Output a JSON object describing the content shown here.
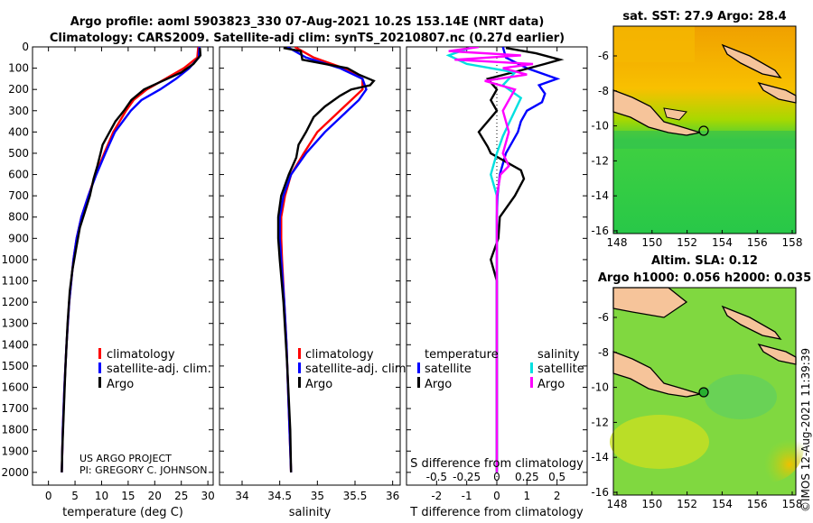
{
  "header": {
    "title_line1": "Argo profile: aoml 5903823_330 07-Aug-2021 10.2S 153.14E (NRT data)",
    "title_line2": "Climatology: CARS2009. Satellite-adj clim: synTS_20210807.nc (0.27d earlier)"
  },
  "credit": {
    "project": "US ARGO PROJECT",
    "pi": "PI: GREGORY C. JOHNSON",
    "timestamp": "©IMOS 12-Aug-2021 11:39:39"
  },
  "colors": {
    "climatology": "#ff0000",
    "satellite": "#0000ff",
    "argo": "#000000",
    "sat_salinity": "#00e0e0",
    "argo_salinity": "#ff00ff"
  },
  "chart_data": [
    {
      "id": "temperature",
      "type": "line",
      "xlabel": "temperature (deg C)",
      "ylabel": "",
      "xlim": [
        -3,
        31
      ],
      "ylim": [
        2060,
        0
      ],
      "xticks": [
        0,
        5,
        10,
        15,
        20,
        25,
        30
      ],
      "xtick_labels": [
        "0",
        "5",
        "10",
        "15",
        "20",
        "25",
        "30"
      ],
      "yticks": [
        0,
        100,
        200,
        300,
        400,
        500,
        600,
        700,
        800,
        900,
        1000,
        1100,
        1200,
        1300,
        1400,
        1500,
        1600,
        1700,
        1800,
        1900,
        2000
      ],
      "legend": [
        "climatology",
        "satellite-adj. clim.",
        "Argo"
      ],
      "series": [
        {
          "name": "climatology",
          "color": "#ff0000",
          "depth": [
            0,
            50,
            100,
            150,
            200,
            250,
            300,
            400,
            500,
            600,
            700,
            800,
            900,
            1000,
            1200,
            1400,
            1600,
            1800,
            2000
          ],
          "values": [
            28.2,
            28,
            25.5,
            22,
            18.5,
            16,
            14.6,
            12.2,
            10.5,
            8.9,
            7.5,
            6.2,
            5.3,
            4.7,
            3.9,
            3.4,
            3.0,
            2.7,
            2.5
          ]
        },
        {
          "name": "satellite-adj. clim.",
          "color": "#0000ff",
          "depth": [
            0,
            50,
            100,
            150,
            200,
            250,
            300,
            400,
            500,
            600,
            700,
            800,
            900,
            1000,
            1200,
            1400,
            1600,
            1800,
            2000
          ],
          "values": [
            28.4,
            28.3,
            26.5,
            24,
            21,
            17.5,
            15.5,
            12.5,
            10.7,
            9,
            7.5,
            6.2,
            5.3,
            4.7,
            3.9,
            3.4,
            3.0,
            2.7,
            2.5
          ]
        },
        {
          "name": "Argo",
          "color": "#000000",
          "depth": [
            5,
            40,
            80,
            120,
            160,
            200,
            250,
            300,
            350,
            400,
            460,
            500,
            560,
            620,
            700,
            780,
            850,
            950,
            1050,
            1150,
            1300,
            1500,
            1700,
            1900,
            2000
          ],
          "values": [
            28.5,
            28.6,
            27.3,
            25,
            21.5,
            18,
            15.6,
            14.2,
            12.6,
            11.5,
            10.2,
            9.8,
            9.2,
            8.5,
            7.8,
            6.8,
            5.9,
            5.2,
            4.5,
            4.0,
            3.6,
            3.2,
            2.9,
            2.6,
            2.5
          ]
        }
      ]
    },
    {
      "id": "salinity",
      "type": "line",
      "xlabel": "salinity",
      "ylabel": "",
      "xlim": [
        33.7,
        36.1
      ],
      "ylim": [
        2060,
        0
      ],
      "xticks": [
        34,
        34.5,
        35,
        35.5,
        36
      ],
      "xtick_labels": [
        "34",
        "34.5",
        "35",
        "35.5",
        "36"
      ],
      "legend": [
        "climatology",
        "satellite-adj. clim.",
        "Argo"
      ],
      "series": [
        {
          "name": "climatology",
          "color": "#ff0000",
          "depth": [
            0,
            50,
            100,
            150,
            200,
            250,
            300,
            400,
            500,
            600,
            700,
            800,
            900,
            1000,
            1200,
            1400,
            1600,
            1800,
            2000
          ],
          "values": [
            34.7,
            34.95,
            35.35,
            35.6,
            35.6,
            35.45,
            35.3,
            35.0,
            34.82,
            34.65,
            34.57,
            34.52,
            34.52,
            34.53,
            34.56,
            34.59,
            34.61,
            34.63,
            34.65
          ]
        },
        {
          "name": "satellite-adj. clim.",
          "color": "#0000ff",
          "depth": [
            0,
            50,
            100,
            150,
            200,
            250,
            300,
            400,
            500,
            600,
            700,
            800,
            900,
            1000,
            1200,
            1400,
            1600,
            1800,
            2000
          ],
          "values": [
            34.6,
            34.85,
            35.3,
            35.6,
            35.65,
            35.55,
            35.4,
            35.1,
            34.85,
            34.65,
            34.55,
            34.5,
            34.5,
            34.52,
            34.56,
            34.59,
            34.61,
            34.63,
            34.65
          ]
        },
        {
          "name": "Argo",
          "color": "#000000",
          "depth": [
            5,
            20,
            60,
            100,
            130,
            160,
            180,
            200,
            230,
            280,
            330,
            400,
            460,
            520,
            600,
            700,
            800,
            900,
            1000,
            1200,
            1500,
            1800,
            2000
          ],
          "values": [
            34.55,
            34.78,
            34.8,
            35.4,
            35.55,
            35.75,
            35.7,
            35.45,
            35.3,
            35.1,
            34.95,
            34.85,
            34.75,
            34.72,
            34.62,
            34.52,
            34.48,
            34.48,
            34.5,
            34.55,
            34.6,
            34.64,
            34.65
          ]
        }
      ]
    },
    {
      "id": "differences",
      "type": "line",
      "xlabel": "T difference from climatology",
      "xlabel_top": "S difference from climatology",
      "xlim": [
        -3,
        3
      ],
      "ylim": [
        2060,
        0
      ],
      "xticks": [
        -2,
        -1,
        0,
        1,
        2
      ],
      "xtick_labels": [
        "-2",
        "-1",
        "0",
        "1",
        "2"
      ],
      "sticks": [
        -0.5,
        -0.25,
        0,
        0.25,
        0.5
      ],
      "stick_labels": [
        "-0.5",
        "-0.25",
        "0",
        "0.25",
        "0.5"
      ],
      "legend_temperature_title": "temperature",
      "legend_salinity_title": "salinity",
      "legend_temperature": [
        "satellite",
        "Argo"
      ],
      "legend_salinity": [
        "satellite",
        "Argo"
      ],
      "series": [
        {
          "name": "T satellite",
          "color": "#0000ff",
          "depth": [
            0,
            50,
            100,
            150,
            180,
            220,
            260,
            300,
            350,
            400,
            450,
            500,
            600,
            700,
            800,
            900,
            1000,
            2000
          ],
          "values": [
            0.2,
            0.3,
            1,
            2,
            1.4,
            1.6,
            1.5,
            1.0,
            0.8,
            0.7,
            0.5,
            0.3,
            0.1,
            0.02,
            0,
            0,
            0,
            0
          ]
        },
        {
          "name": "T Argo",
          "color": "#000000",
          "depth": [
            5,
            30,
            60,
            80,
            110,
            150,
            200,
            250,
            300,
            400,
            470,
            500,
            580,
            620,
            700,
            800,
            900,
            1000,
            1100,
            1200,
            1500,
            2000
          ],
          "values": [
            0.3,
            1.3,
            2.1,
            1.6,
            0.8,
            -0.3,
            0,
            -0.2,
            0,
            -0.6,
            -0.3,
            -0.2,
            0.8,
            0.9,
            0.6,
            0.1,
            0.05,
            -0.2,
            0,
            0,
            0,
            0
          ]
        },
        {
          "name": "S satellite",
          "color": "#00e0e0",
          "depth": [
            0,
            40,
            80,
            120,
            180,
            240,
            300,
            360,
            420,
            500,
            600,
            700,
            800,
            900,
            1000,
            2000
          ],
          "values": [
            -0.2,
            -0.4,
            -0.25,
            0.15,
            0.05,
            0.2,
            0.15,
            0.1,
            0.05,
            0,
            -0.05,
            0,
            0,
            0,
            0,
            0
          ]
        },
        {
          "name": "S Argo",
          "color": "#ff00ff",
          "depth": [
            0,
            20,
            40,
            60,
            80,
            100,
            130,
            160,
            200,
            250,
            300,
            400,
            500,
            560,
            600,
            700,
            800,
            900,
            1000,
            2000
          ],
          "values": [
            -0.15,
            -0.4,
            0.2,
            -0.35,
            0.3,
            0.05,
            0.25,
            -0.1,
            0.15,
            0.1,
            0.05,
            0.1,
            0.05,
            0.1,
            0.03,
            0,
            0,
            0,
            0,
            0
          ]
        }
      ]
    }
  ],
  "maps": [
    {
      "id": "sst",
      "title": "sat. SST: 27.9 Argo: 28.4",
      "xticks": [
        "148",
        "150",
        "152",
        "154",
        "156",
        "158"
      ],
      "yticks": [
        "-6",
        "-8",
        "-10",
        "-12",
        "-14",
        "-16"
      ]
    },
    {
      "id": "sla",
      "title_line1": "Altim. SLA: 0.12",
      "title_line2": "Argo h1000: 0.056 h2000: 0.035",
      "xticks": [
        "148",
        "150",
        "152",
        "154",
        "156",
        "158"
      ],
      "yticks": [
        "-6",
        "-8",
        "-10",
        "-12",
        "-14",
        "-16"
      ]
    }
  ]
}
